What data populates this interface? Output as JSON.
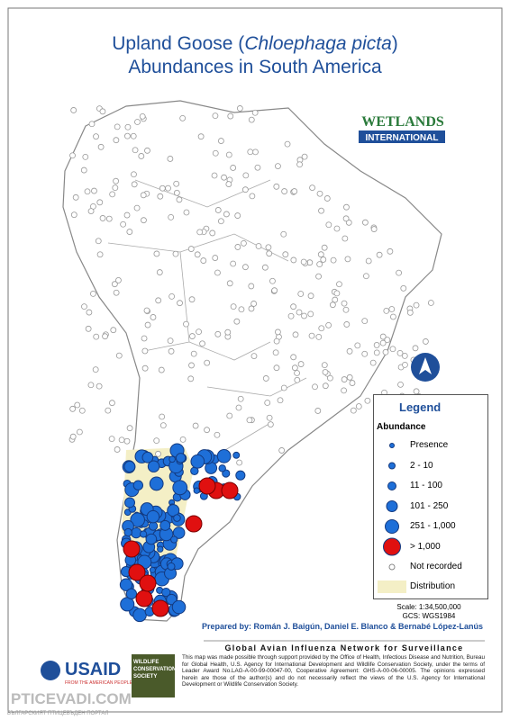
{
  "header": {
    "title_parts": [
      "Upland Goose (",
      "Chloephaga picta",
      ")"
    ],
    "title_line2": "Abundances in South America"
  },
  "logo": {
    "word": "WETLANDS",
    "sub": "INTERNATIONAL"
  },
  "legend": {
    "title": "Legend",
    "subtitle": "Abundance",
    "items": [
      "Presence",
      "2 - 10",
      "11 - 100",
      "101 - 250",
      "251 - 1,000",
      "> 1,000",
      "Not recorded"
    ],
    "distribution": "Distribution"
  },
  "scale": "Scale: 1:34,500,000",
  "gcs": "GCS: WGS1984",
  "prepared": "Prepared by: Román J. Baigún, Daniel E. Blanco & Bernabé López-Lanús",
  "network": "Global Avian Influenza Network for Surveillance",
  "footnote": "This map was made possible through support provided by the Office of Health, Infectious Disease and Nutrition, Bureau for Global Health, U.S. Agency for International Development and Wildlife Conservation Society, under the terms of Leader Award No.LAG-A-00-99-00047-00, Cooperative Agreement: GHS-A-00-06-00005. The opinions expressed herein are those of the author(s) and do not necessarily reflect the views of the U.S. Agency for International Development or Wildlife Conservation Society.",
  "usaid": {
    "name": "USAID",
    "tagline": "FROM THE AMERICAN PEOPLE"
  },
  "wcs": "WILDLIFE CONSERVATION SOCIETY",
  "watermark": {
    "site": "PTICEVADI.COM",
    "sub": "БЪЛГАРСКИЯТ ПТИЦЕВЪДЕН ПОРТАЛ"
  }
}
